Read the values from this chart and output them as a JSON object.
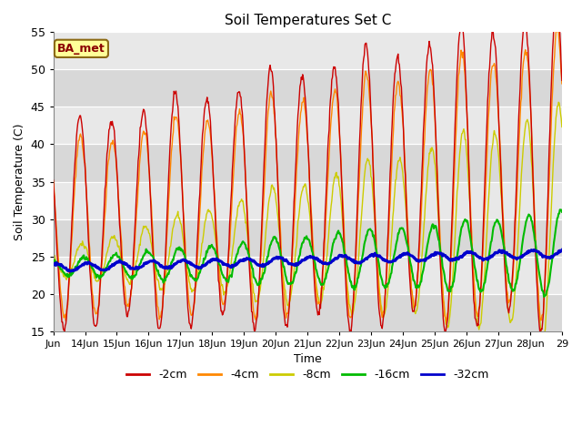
{
  "title": "Soil Temperatures Set C",
  "xlabel": "Time",
  "ylabel": "Soil Temperature (C)",
  "ylim": [
    15,
    55
  ],
  "yticks": [
    15,
    20,
    25,
    30,
    35,
    40,
    45,
    50,
    55
  ],
  "annotation": "BA_met",
  "bg_color": "#dcdcdc",
  "legend_entries": [
    "-2cm",
    "-4cm",
    "-8cm",
    "-16cm",
    "-32cm"
  ],
  "line_colors": [
    "#cc0000",
    "#ff8800",
    "#cccc00",
    "#00bb00",
    "#0000cc"
  ],
  "line_widths": [
    1.0,
    1.0,
    1.0,
    1.5,
    2.2
  ],
  "xtick_labels": [
    "Jun",
    "14Jun",
    "15Jun",
    "16Jun",
    "17Jun",
    "18Jun",
    "19Jun",
    "20Jun",
    "21Jun",
    "22Jun",
    "23Jun",
    "24Jun",
    "25Jun",
    "26Jun",
    "27Jun",
    "28Jun",
    "29"
  ],
  "start_day": 13,
  "end_day": 29,
  "points_per_day": 48
}
